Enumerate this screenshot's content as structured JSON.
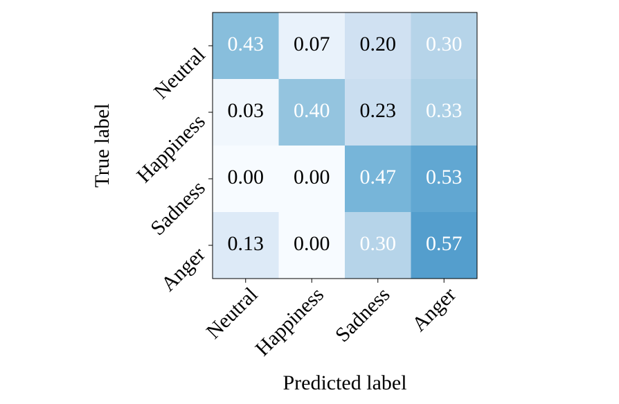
{
  "chart_data": {
    "type": "heatmap",
    "x_label": "Predicted label",
    "y_label": "True label",
    "x_categories": [
      "Neutral",
      "Happiness",
      "Sadness",
      "Anger"
    ],
    "y_categories": [
      "Neutral",
      "Happiness",
      "Sadness",
      "Anger"
    ],
    "values": [
      [
        0.43,
        0.07,
        0.2,
        0.3
      ],
      [
        0.03,
        0.4,
        0.23,
        0.33
      ],
      [
        0.0,
        0.0,
        0.47,
        0.53
      ],
      [
        0.13,
        0.0,
        0.3,
        0.57
      ]
    ],
    "value_labels": [
      [
        "0.43",
        "0.07",
        "0.20",
        "0.30"
      ],
      [
        "0.03",
        "0.40",
        "0.23",
        "0.33"
      ],
      [
        "0.00",
        "0.00",
        "0.47",
        "0.53"
      ],
      [
        "0.13",
        "0.00",
        "0.30",
        "0.57"
      ]
    ],
    "colormap": "Blues",
    "clim": [
      0,
      1
    ]
  }
}
